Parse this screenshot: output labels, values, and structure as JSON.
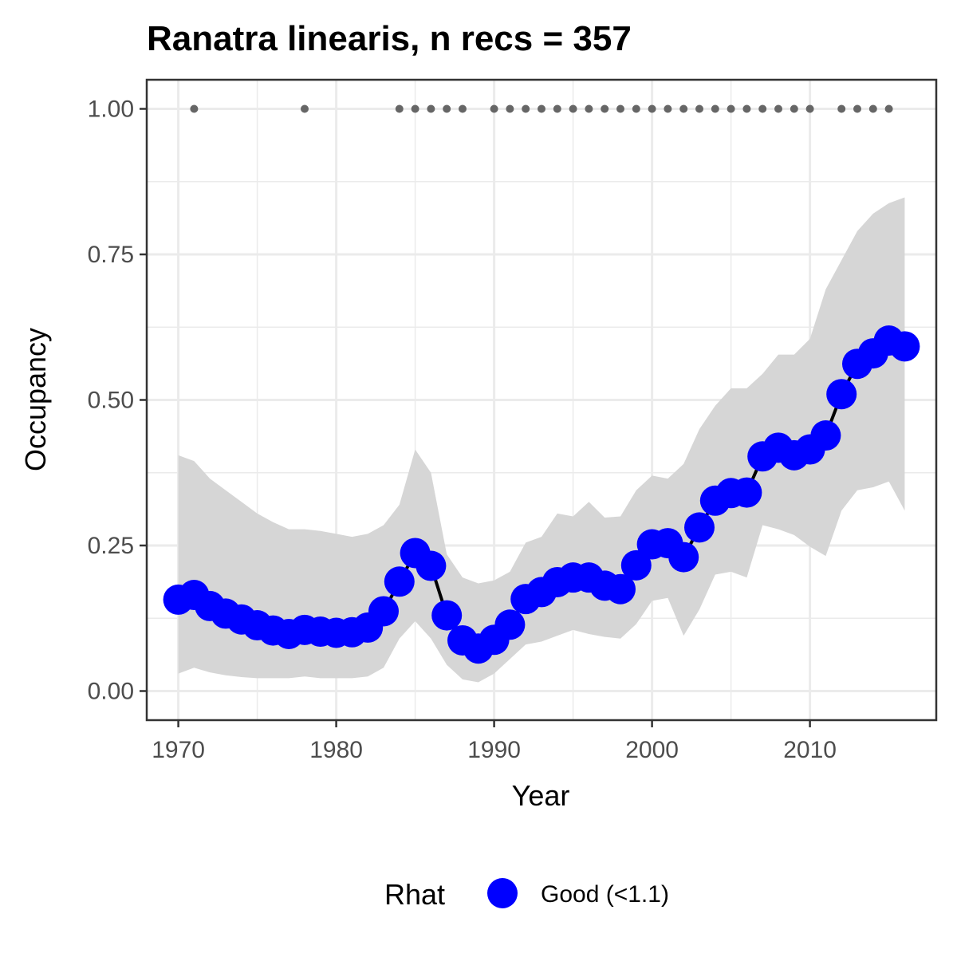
{
  "chart_data": {
    "type": "line",
    "title": "Ranatra linearis, n recs = 357",
    "xlabel": "Year",
    "ylabel": "Occupancy",
    "xlim": [
      1968,
      2018
    ],
    "ylim": [
      -0.05,
      1.05
    ],
    "x_ticks": [
      1970,
      1980,
      1990,
      2000,
      2010
    ],
    "x_tick_labels": [
      "1970",
      "1980",
      "1990",
      "2000",
      "2010"
    ],
    "y_ticks": [
      0,
      0.25,
      0.5,
      0.75,
      1.0
    ],
    "y_tick_labels": [
      "0.00",
      "0.25",
      "0.50",
      "0.75",
      "1.00"
    ],
    "grid": true,
    "legend_position": "bottom",
    "legend": {
      "title": "Rhat",
      "label": "Good (<1.1)"
    },
    "colors": {
      "points": "#0000ff",
      "line": "#000000",
      "ribbon": "#d6d6d6",
      "record_dots": "#666666",
      "grid": "#ebebeb",
      "panel_border": "#333333"
    },
    "series": [
      {
        "x": [
          1970,
          1971,
          1972,
          1973,
          1974,
          1975,
          1976,
          1977,
          1978,
          1979,
          1980,
          1981,
          1982,
          1983,
          1984,
          1985,
          1986,
          1987,
          1988,
          1989,
          1990,
          1991,
          1992,
          1993,
          1994,
          1995,
          1996,
          1997,
          1998,
          1999,
          2000,
          2001,
          2002,
          2003,
          2004,
          2005,
          2006,
          2007,
          2008,
          2009,
          2010,
          2011,
          2012,
          2013,
          2014,
          2015,
          2016
        ],
        "y": [
          0.157,
          0.165,
          0.146,
          0.133,
          0.123,
          0.113,
          0.104,
          0.098,
          0.105,
          0.102,
          0.1,
          0.101,
          0.109,
          0.137,
          0.188,
          0.237,
          0.215,
          0.13,
          0.087,
          0.073,
          0.088,
          0.114,
          0.158,
          0.17,
          0.187,
          0.195,
          0.195,
          0.181,
          0.175,
          0.216,
          0.252,
          0.254,
          0.23,
          0.281,
          0.327,
          0.34,
          0.341,
          0.403,
          0.418,
          0.405,
          0.415,
          0.439,
          0.51,
          0.562,
          0.58,
          0.602,
          0.592
        ],
        "lower": [
          0.03,
          0.04,
          0.032,
          0.027,
          0.024,
          0.022,
          0.022,
          0.022,
          0.025,
          0.022,
          0.022,
          0.022,
          0.025,
          0.04,
          0.09,
          0.12,
          0.09,
          0.045,
          0.02,
          0.015,
          0.03,
          0.055,
          0.08,
          0.085,
          0.095,
          0.105,
          0.098,
          0.093,
          0.09,
          0.115,
          0.155,
          0.16,
          0.095,
          0.14,
          0.2,
          0.205,
          0.195,
          0.285,
          0.278,
          0.268,
          0.248,
          0.232,
          0.31,
          0.345,
          0.35,
          0.36,
          0.31
        ],
        "upper": [
          0.405,
          0.395,
          0.365,
          0.345,
          0.325,
          0.305,
          0.29,
          0.278,
          0.278,
          0.275,
          0.27,
          0.265,
          0.27,
          0.285,
          0.32,
          0.415,
          0.375,
          0.235,
          0.195,
          0.185,
          0.19,
          0.205,
          0.255,
          0.265,
          0.305,
          0.3,
          0.325,
          0.298,
          0.3,
          0.345,
          0.37,
          0.365,
          0.39,
          0.45,
          0.49,
          0.52,
          0.52,
          0.545,
          0.578,
          0.578,
          0.605,
          0.69,
          0.74,
          0.79,
          0.82,
          0.838,
          0.848
        ]
      }
    ],
    "record_years": [
      1971,
      1978,
      1984,
      1985,
      1986,
      1987,
      1988,
      1990,
      1991,
      1992,
      1993,
      1994,
      1995,
      1996,
      1997,
      1998,
      1999,
      2000,
      2001,
      2002,
      2003,
      2004,
      2005,
      2006,
      2007,
      2008,
      2009,
      2010,
      2012,
      2013,
      2014,
      2015
    ],
    "record_value": 1.0
  }
}
